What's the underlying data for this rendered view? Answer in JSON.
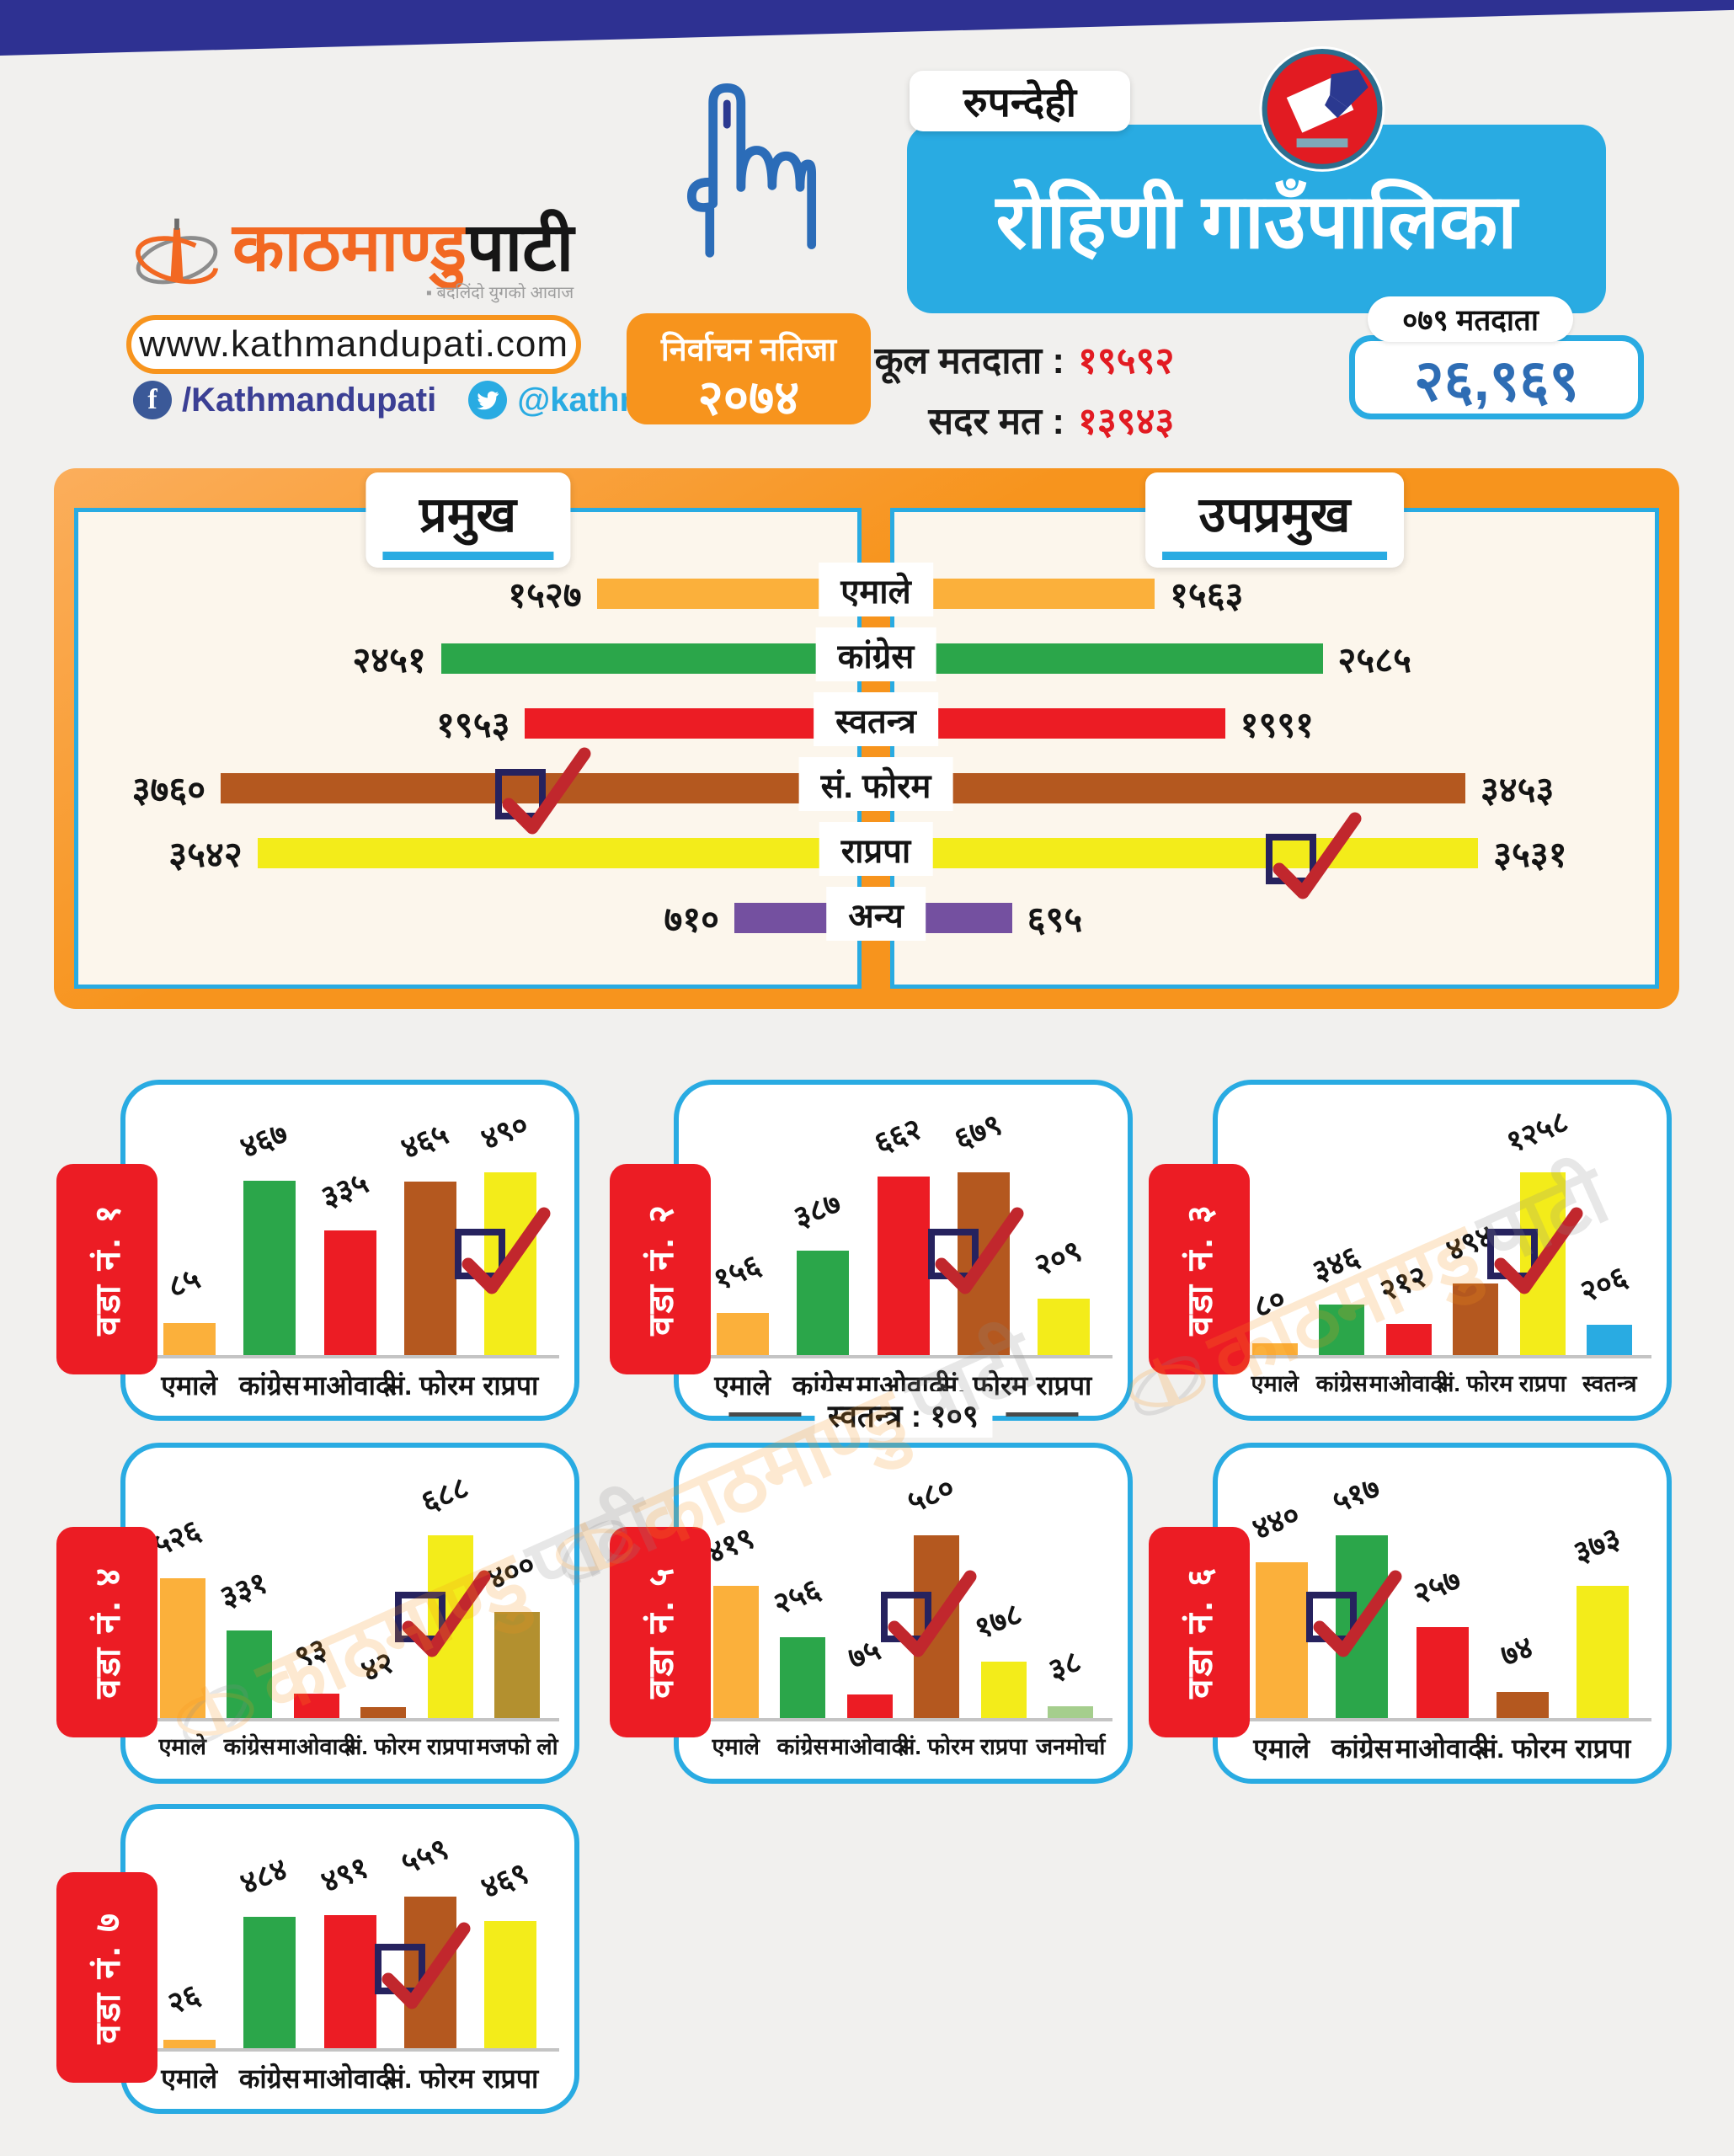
{
  "header": {
    "brand": {
      "logo_orange": "काठमाण्डु",
      "logo_black": "पाटी",
      "tagline": "▪ बदलिंदो युगको आवाज",
      "url": "www.kathmandupati.com",
      "facebook_handle": "/Kathmandupati",
      "twitter_handle": "@kathmandupati1"
    },
    "result_badge_line1": "निर्वाचन नतिजा",
    "result_badge_line2": "२०७४",
    "district": "रुपन्देही",
    "municipality": "रोहिणी गाउँपालिका",
    "stats": [
      {
        "label": "कूल मतदाता :",
        "value": "१९५९२"
      },
      {
        "label": "सदर मत :",
        "value": "१३९४३"
      }
    ],
    "voters_pill": "०७९ मतदाता",
    "voters_total": "२६,९६९"
  },
  "watermark": {
    "text_orange": "काठमाण्डु",
    "text_grey": "पाटी"
  },
  "colors": {
    "navy_band": "#2E3192",
    "accent_orange": "#F7941D",
    "accent_blue": "#29ABE2",
    "check_red": "#C1272D",
    "check_navy": "#26225E",
    "value_red": "#E21B22",
    "total_blue": "#2E6DB4"
  },
  "chart_data": {
    "type": "bar",
    "main": {
      "left_title": "प्रमुख",
      "right_title": "उपप्रमुख",
      "categories": [
        "एमाले",
        "कांग्रेस",
        "स्वतन्त्र",
        "सं. फोरम",
        "राप्रपा",
        "अन्य"
      ],
      "colors": [
        "#FBB03B",
        "#2BA64A",
        "#EC1C24",
        "#B4581F",
        "#F3EC1A",
        "#7450A0"
      ],
      "scale_max": 3760,
      "series": [
        {
          "name": "प्रमुख",
          "values": [
            1527,
            2451,
            1953,
            3760,
            3542,
            710
          ],
          "labels": [
            "१५२७",
            "२४५१",
            "१९५३",
            "३७६०",
            "३५४२",
            "७१०"
          ],
          "winner_index": 3,
          "check_frac": 0.6
        },
        {
          "name": "उपप्रमुख",
          "values": [
            1563,
            2585,
            1991,
            3453,
            3531,
            695
          ],
          "labels": [
            "१५६३",
            "२५८५",
            "१९९१",
            "३४५३",
            "३५३१",
            "६९५"
          ],
          "winner_index": 4,
          "check_frac": 0.555
        }
      ]
    },
    "wards": [
      {
        "title": "वडा नं. १",
        "categories": [
          "एमाले",
          "कांग्रेस",
          "माओवादी",
          "सं. फोरम",
          "राप्रपा"
        ],
        "values": [
          85,
          467,
          335,
          465,
          490
        ],
        "labels": [
          "८५",
          "४६७",
          "३३५",
          "४६५",
          "४९०"
        ],
        "colors": [
          "#FBB03B",
          "#2BA64A",
          "#EC1C24",
          "#B4581F",
          "#F3EC1A"
        ],
        "winner_index": 4
      },
      {
        "title": "वडा नं. २",
        "categories": [
          "एमाले",
          "कांग्रेस",
          "माओवादी",
          "सं. फोरम",
          "राप्रपा"
        ],
        "values": [
          156,
          387,
          662,
          679,
          209
        ],
        "labels": [
          "१५६",
          "३८७",
          "६६२",
          "६७९",
          "२०९"
        ],
        "colors": [
          "#FBB03B",
          "#2BA64A",
          "#EC1C24",
          "#B4581F",
          "#F3EC1A"
        ],
        "winner_index": 3,
        "footnote": "स्वतन्त्र : १०९"
      },
      {
        "title": "वडा नं. ३",
        "categories": [
          "एमाले",
          "कांग्रेस",
          "माओवादी",
          "सं. फोरम",
          "राप्रपा",
          "स्वतन्त्र"
        ],
        "values": [
          80,
          346,
          212,
          494,
          1258,
          206
        ],
        "labels": [
          "८०",
          "३४६",
          "२१२",
          "४९४",
          "१२५८",
          "२०६"
        ],
        "colors": [
          "#FBB03B",
          "#2BA64A",
          "#EC1C24",
          "#B4581F",
          "#F3EC1A",
          "#29ABE2"
        ],
        "winner_index": 4
      },
      {
        "title": "वडा नं. ४",
        "categories": [
          "एमाले",
          "कांग्रेस",
          "माओवादी",
          "सं. फोरम",
          "राप्रपा",
          "मजफो लो"
        ],
        "values": [
          526,
          331,
          93,
          42,
          688,
          400
        ],
        "labels": [
          "५२६",
          "३३१",
          "९३",
          "४२",
          "६८८",
          "४००"
        ],
        "colors": [
          "#FBB03B",
          "#2BA64A",
          "#EC1C24",
          "#B4581F",
          "#F3EC1A",
          "#B3902F"
        ],
        "winner_index": 4
      },
      {
        "title": "वडा नं. ५",
        "categories": [
          "एमाले",
          "कांग्रेस",
          "माओवादी",
          "सं. फोरम",
          "राप्रपा",
          "जनमोर्चा"
        ],
        "values": [
          419,
          256,
          75,
          580,
          178,
          38
        ],
        "labels": [
          "४१९",
          "२५६",
          "७५",
          "५८०",
          "१७८",
          "३८"
        ],
        "colors": [
          "#FBB03B",
          "#2BA64A",
          "#EC1C24",
          "#B4581F",
          "#F3EC1A",
          "#A5CE8D"
        ],
        "winner_index": 3
      },
      {
        "title": "वडा नं. ६",
        "categories": [
          "एमाले",
          "कांग्रेस",
          "माओवादी",
          "सं. फोरम",
          "राप्रपा"
        ],
        "values": [
          440,
          517,
          257,
          74,
          373
        ],
        "labels": [
          "४४०",
          "५१७",
          "२५७",
          "७४",
          "३७३"
        ],
        "colors": [
          "#FBB03B",
          "#2BA64A",
          "#EC1C24",
          "#B4581F",
          "#F3EC1A"
        ],
        "winner_index": 1
      },
      {
        "title": "वडा नं. ७",
        "categories": [
          "एमाले",
          "कांग्रेस",
          "माओवादी",
          "सं. फोरम",
          "राप्रपा"
        ],
        "values": [
          26,
          484,
          491,
          559,
          469
        ],
        "labels": [
          "२६",
          "४८४",
          "४९१",
          "५५९",
          "४६९"
        ],
        "colors": [
          "#FBB03B",
          "#2BA64A",
          "#EC1C24",
          "#B4581F",
          "#F3EC1A"
        ],
        "winner_index": 3
      }
    ]
  }
}
